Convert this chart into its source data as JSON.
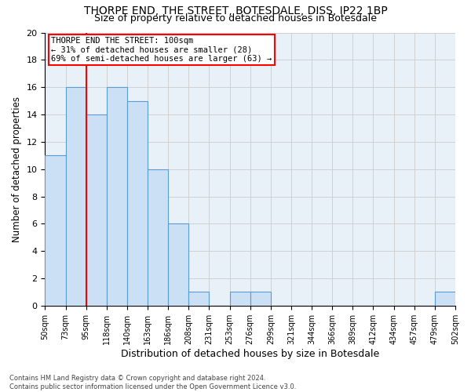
{
  "title": "THORPE END, THE STREET, BOTESDALE, DISS, IP22 1BP",
  "subtitle": "Size of property relative to detached houses in Botesdale",
  "xlabel": "Distribution of detached houses by size in Botesdale",
  "ylabel": "Number of detached properties",
  "bin_labels": [
    "50sqm",
    "73sqm",
    "95sqm",
    "118sqm",
    "140sqm",
    "163sqm",
    "186sqm",
    "208sqm",
    "231sqm",
    "253sqm",
    "276sqm",
    "299sqm",
    "321sqm",
    "344sqm",
    "366sqm",
    "389sqm",
    "412sqm",
    "434sqm",
    "457sqm",
    "479sqm",
    "502sqm"
  ],
  "bar_values": [
    11,
    16,
    14,
    16,
    15,
    10,
    6,
    1,
    0,
    1,
    1,
    0,
    0,
    0,
    0,
    0,
    0,
    0,
    0,
    1
  ],
  "bar_face_color": "#cce0f5",
  "bar_edge_color": "#5b9bd5",
  "red_line_bin": 2,
  "annotation_line1": "THORPE END THE STREET: 100sqm",
  "annotation_line2": "← 31% of detached houses are smaller (28)",
  "annotation_line3": "69% of semi-detached houses are larger (63) →",
  "annotation_box_color": "#ff0000",
  "ylim": [
    0,
    20
  ],
  "yticks": [
    0,
    2,
    4,
    6,
    8,
    10,
    12,
    14,
    16,
    18,
    20
  ],
  "grid_color": "#cccccc",
  "bg_color": "#e8f0f8",
  "footnote": "Contains HM Land Registry data © Crown copyright and database right 2024.\nContains public sector information licensed under the Open Government Licence v3.0.",
  "title_fontsize": 10,
  "subtitle_fontsize": 9,
  "xlabel_fontsize": 9,
  "ylabel_fontsize": 8.5,
  "tick_fontsize": 7,
  "annot_fontsize": 7.5
}
